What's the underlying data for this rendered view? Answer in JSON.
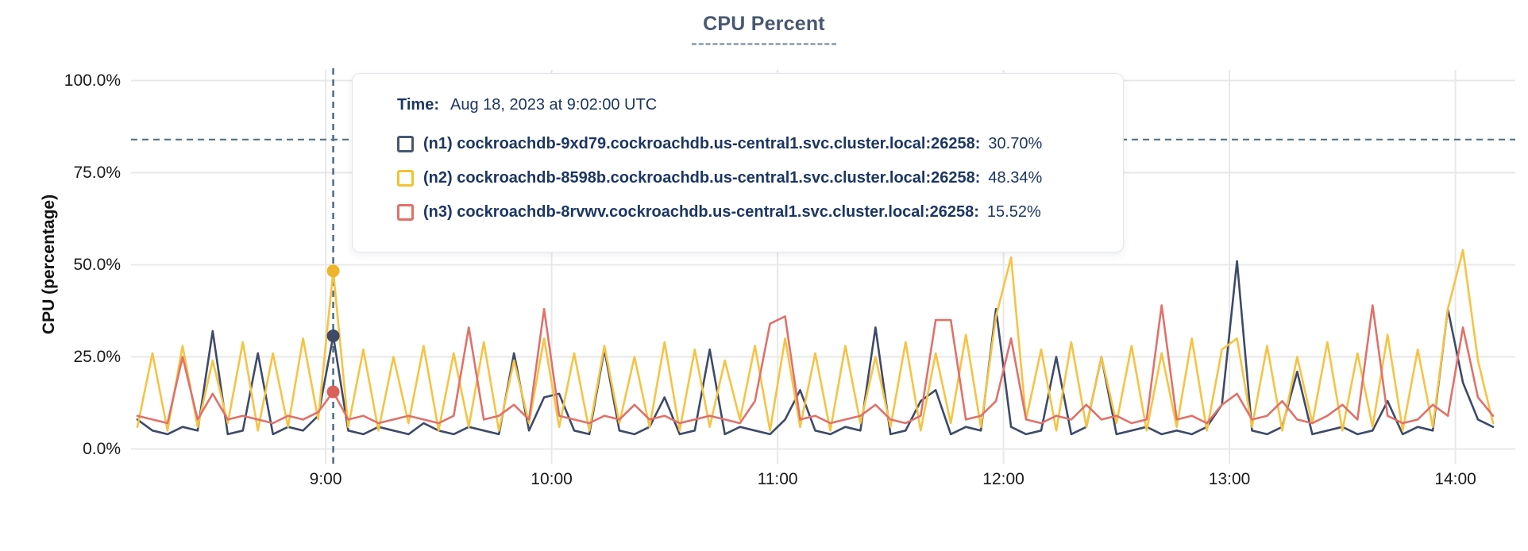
{
  "title": "CPU Percent",
  "tooltip": {
    "time_label": "Time:",
    "time_value": "Aug 18, 2023 at 9:02:00 UTC",
    "rows": [
      {
        "label": "(n1) cockroachdb-9xd79.cockroachdb.us-central1.svc.cluster.local:26258:",
        "value": "30.70%",
        "color": "#475872"
      },
      {
        "label": "(n2) cockroachdb-8598b.cockroachdb.us-central1.svc.cluster.local:26258:",
        "value": "48.34%",
        "color": "#f2c231"
      },
      {
        "label": "(n3) cockroachdb-8rvwv.cockroachdb.us-central1.svc.cluster.local:26258:",
        "value": "15.52%",
        "color": "#e0716a"
      }
    ]
  },
  "colors": {
    "grid": "#e8e8e8",
    "dashed_guides": "#4e6b84",
    "title_text": "#475872",
    "tooltip_text": "#1c3663",
    "axis_text": "#1a1a1a"
  },
  "chart_data": {
    "type": "line",
    "title": "CPU Percent",
    "xlabel": "",
    "ylabel": "CPU (percentage)",
    "ylim": [
      0,
      100
    ],
    "grid": true,
    "legend_position": "tooltip-overlay",
    "x_domain_minutes": [
      0,
      360
    ],
    "x_start_time": "8:10",
    "x_step_minutes": 4,
    "yticks": [
      {
        "value": 0,
        "label": "0.0%"
      },
      {
        "value": 25,
        "label": "25.0%"
      },
      {
        "value": 50,
        "label": "50.0%"
      },
      {
        "value": 75,
        "label": "75.0%"
      },
      {
        "value": 100,
        "label": "100.0%"
      }
    ],
    "xticks": [
      {
        "minute": 50,
        "label": "9:00"
      },
      {
        "minute": 110,
        "label": "10:00"
      },
      {
        "minute": 170,
        "label": "11:00"
      },
      {
        "minute": 230,
        "label": "12:00"
      },
      {
        "minute": 290,
        "label": "13:00"
      },
      {
        "minute": 350,
        "label": "14:00"
      }
    ],
    "threshold_percent": 84,
    "tracker": {
      "minute": 52,
      "time": "9:02:00 UTC",
      "points": [
        {
          "series": "n1",
          "value": 30.7,
          "color": "#3e4a68"
        },
        {
          "series": "n2",
          "value": 48.34,
          "color": "#efb52a"
        },
        {
          "series": "n3",
          "value": 15.52,
          "color": "#d9625d"
        }
      ]
    },
    "series": [
      {
        "name": "(n1) cockroachdb-9xd79.cockroachdb.us-central1.svc.cluster.local:26258",
        "color": "#3e4a68",
        "values": [
          8,
          5,
          4,
          6,
          5,
          32,
          4,
          5,
          26,
          4,
          6,
          5,
          9,
          30.7,
          5,
          4,
          6,
          5,
          4,
          7,
          5,
          4,
          6,
          5,
          4,
          26,
          5,
          14,
          15,
          5,
          4,
          27,
          5,
          4,
          6,
          14,
          4,
          5,
          27,
          4,
          6,
          5,
          4,
          8,
          16,
          5,
          4,
          6,
          5,
          33,
          4,
          5,
          13,
          16,
          4,
          6,
          5,
          38,
          6,
          4,
          5,
          25,
          4,
          6,
          25,
          4,
          5,
          6,
          4,
          5,
          4,
          6,
          12,
          51,
          5,
          4,
          6,
          21,
          4,
          5,
          6,
          4,
          5,
          13,
          4,
          6,
          5,
          38,
          18,
          8,
          6
        ]
      },
      {
        "name": "(n2) cockroachdb-8598b.cockroachdb.us-central1.svc.cluster.local:26258",
        "color": "#f6c343",
        "values": [
          6,
          26,
          5,
          28,
          6,
          24,
          7,
          29,
          5,
          26,
          6,
          30,
          8,
          48.34,
          6,
          27,
          5,
          25,
          7,
          28,
          5,
          26,
          6,
          29,
          5,
          24,
          7,
          30,
          6,
          26,
          5,
          28,
          7,
          25,
          6,
          29,
          5,
          27,
          6,
          24,
          8,
          28,
          5,
          30,
          6,
          26,
          5,
          28,
          7,
          25,
          6,
          29,
          5,
          26,
          7,
          31,
          6,
          36,
          52,
          8,
          27,
          5,
          29,
          6,
          25,
          7,
          28,
          5,
          26,
          6,
          30,
          5,
          27,
          30,
          6,
          28,
          5,
          25,
          7,
          29,
          5,
          26,
          6,
          31,
          5,
          27,
          6,
          38,
          54,
          24,
          7
        ]
      },
      {
        "name": "(n3) cockroachdb-8rvwv.cockroachdb.us-central1.svc.cluster.local:26258",
        "color": "#e0716a",
        "values": [
          9,
          8,
          7,
          25,
          8,
          15,
          8,
          9,
          8,
          7,
          9,
          8,
          10,
          15.52,
          8,
          9,
          7,
          8,
          9,
          8,
          7,
          9,
          33,
          8,
          9,
          12,
          8,
          38,
          9,
          8,
          7,
          9,
          8,
          12,
          8,
          9,
          7,
          8,
          9,
          8,
          7,
          13,
          34,
          36,
          8,
          9,
          7,
          8,
          9,
          12,
          8,
          7,
          9,
          35,
          35,
          8,
          9,
          13,
          30,
          8,
          7,
          9,
          8,
          12,
          8,
          9,
          7,
          8,
          39,
          8,
          9,
          7,
          12,
          15,
          8,
          9,
          13,
          8,
          7,
          9,
          12,
          8,
          39,
          9,
          7,
          8,
          12,
          9,
          33,
          14,
          9
        ]
      }
    ]
  }
}
